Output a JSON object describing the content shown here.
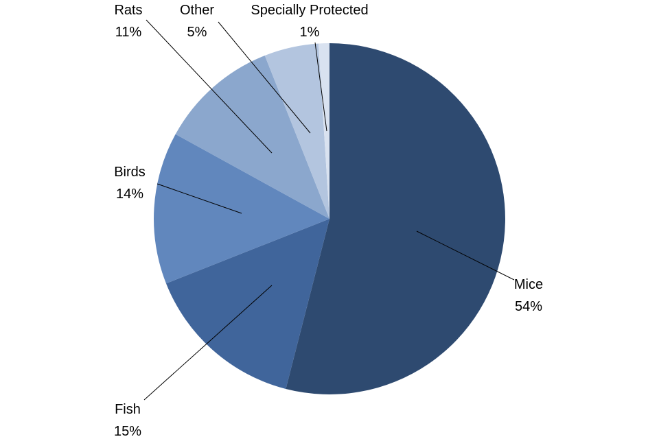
{
  "chart_data": {
    "type": "pie",
    "start_angle_deg": 0,
    "direction": "clockwise",
    "slices": [
      {
        "name": "Mice",
        "value": 54,
        "label": "54%",
        "color": "#2e4a70"
      },
      {
        "name": "Fish",
        "value": 15,
        "label": "15%",
        "color": "#40659b"
      },
      {
        "name": "Birds",
        "value": 14,
        "label": "14%",
        "color": "#6187bd"
      },
      {
        "name": "Rats",
        "value": 11,
        "label": "11%",
        "color": "#8ba7cd"
      },
      {
        "name": "Other",
        "value": 5,
        "label": "5%",
        "color": "#b3c5df"
      },
      {
        "name": "Specially Protected",
        "value": 1,
        "label": "1%",
        "color": "#d9e2f0"
      }
    ]
  }
}
